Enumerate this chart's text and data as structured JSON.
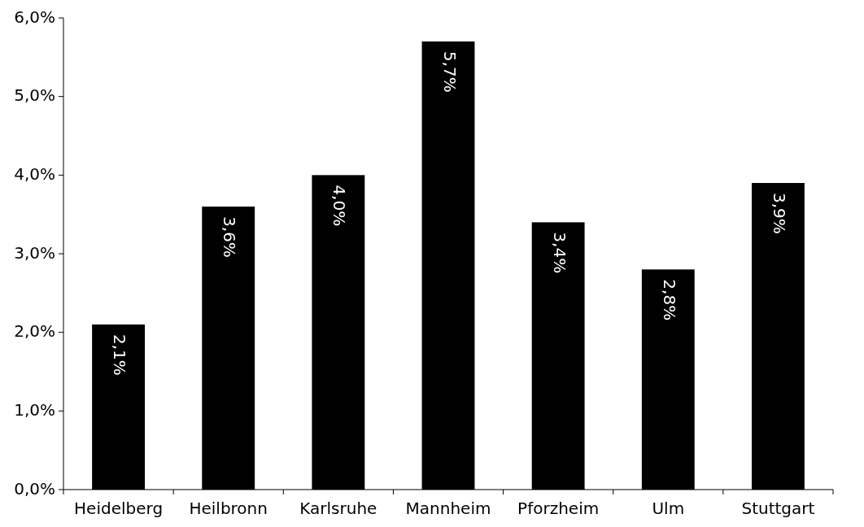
{
  "chart_data": {
    "type": "bar",
    "categories": [
      "Heidelberg",
      "Heilbronn",
      "Karlsruhe",
      "Mannheim",
      "Pforzheim",
      "Ulm",
      "Stuttgart"
    ],
    "values": [
      2.1,
      3.6,
      4.0,
      5.7,
      3.4,
      2.8,
      3.9
    ],
    "value_labels": [
      "2,1%",
      "3,6%",
      "4,0%",
      "5,7%",
      "3,4%",
      "2,8%",
      "3,9%"
    ],
    "color": "#000000",
    "ylim": [
      0,
      6
    ],
    "yticks": [
      {
        "value": 0,
        "label": "0,0%"
      },
      {
        "value": 1,
        "label": "1,0%"
      },
      {
        "value": 2,
        "label": "2,0%"
      },
      {
        "value": 3,
        "label": "3,0%"
      },
      {
        "value": 4,
        "label": "4,0%"
      },
      {
        "value": 5,
        "label": "5,0%"
      },
      {
        "value": 6,
        "label": "6,0%"
      }
    ],
    "grid": false
  }
}
